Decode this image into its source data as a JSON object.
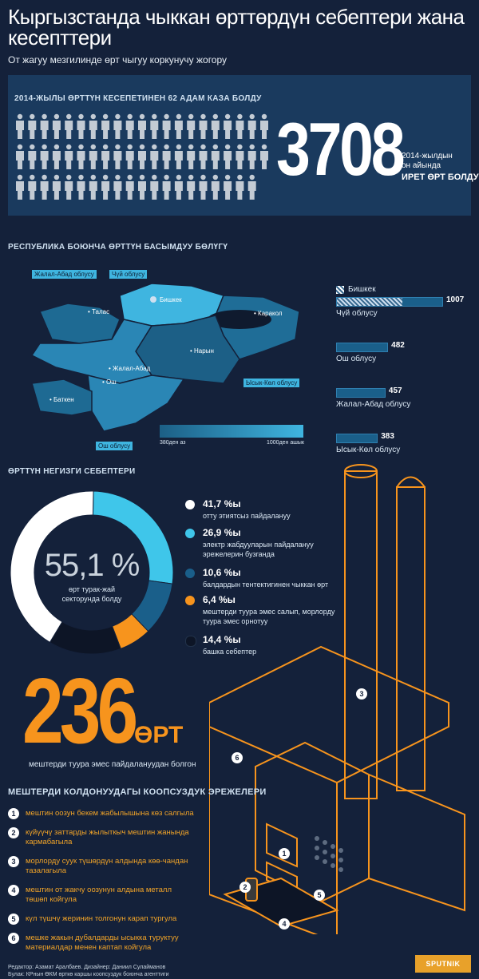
{
  "header": {
    "title": "Кыргызстанда чыккан өрттөрдүн себептери жана кесепттери",
    "subtitle": "От жагуу мезгилинде өрт чыгуу коркунучу жогору"
  },
  "deaths": {
    "caption": "2014-ЖЫЛЫ ӨРТТҮН КЕСЕПЕТИНЕН 62 АДАМ КАЗА БОЛДУ",
    "count": 62
  },
  "fires_total": {
    "number": "3708",
    "line1": "2014-жылдын",
    "line2": "он айында",
    "line3": "ИРЕТ ӨРТ БОЛДУ"
  },
  "map": {
    "caption": "РЕСПУБЛИКА БОЮНЧА ӨРТТҮН БАСЫМДУУ БӨЛҮГҮ",
    "tags": [
      "Жалал-Абад облусу",
      "Чүй облусу",
      "Ысык-Көл облусу",
      "Ош облусу"
    ],
    "cities": [
      "Талас",
      "Бишкек",
      "Каракол",
      "Нарын",
      "Жалал-Абад",
      "Ош",
      "Баткен"
    ],
    "scale_min": "380ден аз",
    "scale_max": "1000ден ашык",
    "colors": {
      "low": "#1c5f86",
      "high": "#3fb5e0",
      "bishkek": "#cfe0f0"
    }
  },
  "region_bars": {
    "bishkek_label": "Бишкек",
    "items": [
      {
        "region": "Чүй облусу",
        "value": 1007
      },
      {
        "region": "Ош облусу",
        "value": 482
      },
      {
        "region": "Жалал-Абад облусу",
        "value": 457
      },
      {
        "region": "Ысык-Көл облусу",
        "value": 383
      }
    ]
  },
  "causes": {
    "caption": "ӨРТТҮН НЕГИЗГИ СЕБЕПТЕРИ",
    "center_value": "55,1 %",
    "center_line1": "өрт турак-жай",
    "center_line2": "секторунда болду",
    "items": [
      {
        "pct": "41,7 %ы",
        "line1": "отту этиятсыз пайдалануу",
        "line2": "",
        "color": "#ffffff"
      },
      {
        "pct": "26,9 %ы",
        "line1": "электр жабдууларын пайдалануу",
        "line2": "эрежелерин бузганда",
        "color": "#3fc6ea"
      },
      {
        "pct": "10,6 %ы",
        "line1": "балдардын тентектигинен чыккан өрт",
        "line2": "",
        "color": "#1a5f8a"
      },
      {
        "pct": "6,4 %ы",
        "line1": "мештерди туура эмес салып, морлорду",
        "line2": "туура эмес орнотуу",
        "color": "#f7941d"
      },
      {
        "pct": "14,4 %ы",
        "line1": "башка себептер",
        "line2": "",
        "color": "#0d1526"
      }
    ]
  },
  "chart_data": {
    "type": "pie",
    "categories": [
      "отту этиятсыз пайдалануу",
      "электр жабдууларын пайдалануу эрежелерин бузганда",
      "балдардын тентектигинен чыккан өрт",
      "мештерди туура эмес салып, морлорду туура эмес орнотуу",
      "башка себептер"
    ],
    "values": [
      41.7,
      26.9,
      10.6,
      6.4,
      14.4
    ]
  },
  "stove_fires": {
    "number": "236",
    "unit": "ӨРТ",
    "caption": "мештерди туура эмес пайдалануудан болгон"
  },
  "rules": {
    "caption": "МЕШТЕРДИ КОЛДОНУУДАГЫ КООПСУЗДУК ЭРЕЖЕЛЕРИ",
    "items": [
      {
        "num": "1",
        "line1": "мештин оозун бекем жабылышына көз салгыла",
        "line2": ""
      },
      {
        "num": "2",
        "line1": "күйүүчү заттарды жылыткыч мештин жанында",
        "line2": "кармабагыла"
      },
      {
        "num": "3",
        "line1": "морлорду суук түшөрдүн алдында көө-чандан",
        "line2": "тазалагыла"
      },
      {
        "num": "4",
        "line1": "мештин от жакчу оозунун алдына металл",
        "line2": "төшөп койгула"
      },
      {
        "num": "5",
        "line1": "күл түшчү жеринин толгонун карап тургула",
        "line2": ""
      },
      {
        "num": "6",
        "line1": "мешке жакын дубалдарды ысыкка туруктуу",
        "line2": "материалдар менен каптап койгула"
      }
    ]
  },
  "stove_markers": [
    "1",
    "2",
    "3",
    "4",
    "5",
    "6"
  ],
  "footer": {
    "line1": "Редактор: Азамат Аралбаев. Дизайнер: Даниил Сулайманов",
    "line2": "Булак: КРнын ӨКМ өрткө каршы коопсуздук боюнча агенттиги",
    "logo": "SPUTNIK"
  }
}
